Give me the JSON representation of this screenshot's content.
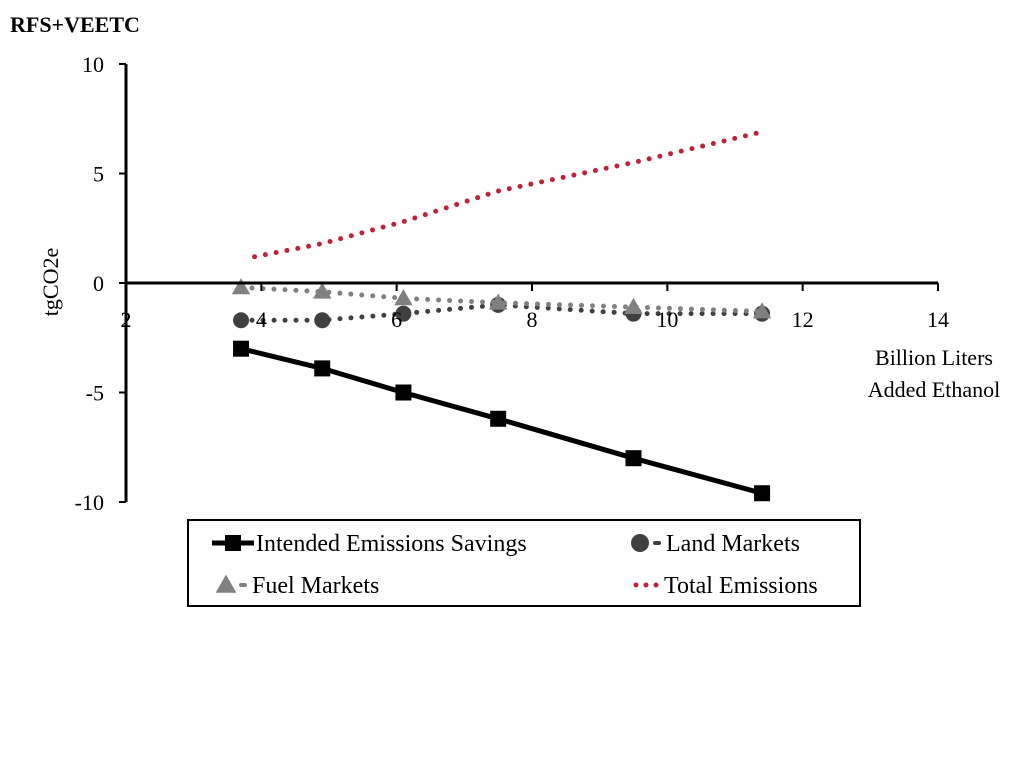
{
  "chart_data": {
    "type": "line",
    "title": "RFS+VEETC",
    "ylabel": "tgCO2e",
    "xlabel_lines": [
      "Billion Liters",
      "Added Ethanol"
    ],
    "xlim": [
      2,
      14
    ],
    "ylim": [
      -10,
      10
    ],
    "x_ticks": [
      2,
      4,
      6,
      8,
      10,
      12,
      14
    ],
    "y_ticks": [
      10,
      5,
      0,
      -5,
      -10
    ],
    "grid": false,
    "legend_position": "bottom",
    "series": [
      {
        "name": "Intended Emissions Savings",
        "style": "solid",
        "marker": "square",
        "color": "#000000",
        "x": [
          3.7,
          4.9,
          6.1,
          7.5,
          9.5,
          11.4
        ],
        "y": [
          -3.0,
          -3.9,
          -5.0,
          -6.2,
          -8.0,
          -9.6
        ]
      },
      {
        "name": "Land Markets",
        "style": "dotted",
        "marker": "circle",
        "color": "#404040",
        "x": [
          3.7,
          4.9,
          6.1,
          7.5,
          9.5,
          11.4
        ],
        "y": [
          -1.7,
          -1.7,
          -1.4,
          -1.0,
          -1.4,
          -1.4
        ]
      },
      {
        "name": "Fuel Markets",
        "style": "dotted",
        "marker": "triangle",
        "color": "#808080",
        "x": [
          3.7,
          4.9,
          6.1,
          7.5,
          9.5,
          11.4
        ],
        "y": [
          -0.2,
          -0.4,
          -0.7,
          -0.9,
          -1.1,
          -1.3
        ]
      },
      {
        "name": "Total Emissions",
        "style": "dotted",
        "marker": "none",
        "color": "#c0203a",
        "x": [
          3.9,
          4.9,
          6.1,
          7.5,
          9.5,
          11.4
        ],
        "y": [
          1.2,
          1.8,
          2.8,
          4.2,
          5.5,
          6.9
        ]
      }
    ]
  }
}
